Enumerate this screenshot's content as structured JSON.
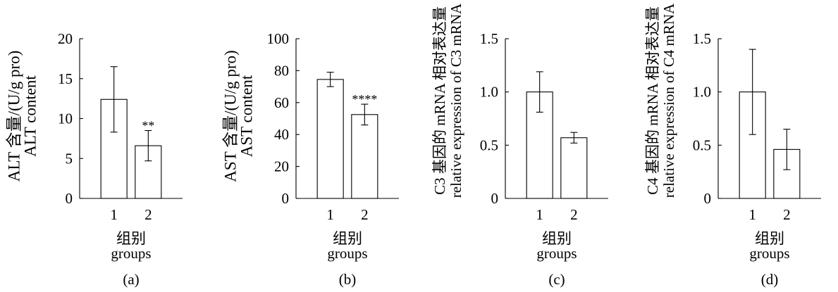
{
  "colors": {
    "background": "#ffffff",
    "bar_fill": "#ffffff",
    "bar_edge": "#000000",
    "axis": "#000000",
    "text": "#000000"
  },
  "chart_data": [
    {
      "type": "bar",
      "panel_label": "(a)",
      "ylabel": [
        "ALT 含量/(U/g pro)",
        "ALT content"
      ],
      "xlabel": [
        "组别",
        "groups"
      ],
      "categories": [
        "1",
        "2"
      ],
      "values": [
        12.4,
        6.6
      ],
      "error": [
        4.1,
        1.9
      ],
      "annotations": [
        {
          "category": "2",
          "text": "**"
        }
      ],
      "ylim": [
        0,
        20
      ],
      "yticks": [
        0,
        5,
        10,
        15,
        20
      ],
      "ytick_labels": [
        "0",
        "5",
        "10",
        "15",
        "20"
      ],
      "grid": false
    },
    {
      "type": "bar",
      "panel_label": "(b)",
      "ylabel": [
        "AST 含量/(U/g pro)",
        "AST content"
      ],
      "xlabel": [
        "组别",
        "groups"
      ],
      "categories": [
        "1",
        "2"
      ],
      "values": [
        74.5,
        52.5
      ],
      "error": [
        4.5,
        6.5
      ],
      "annotations": [
        {
          "category": "2",
          "text": "****"
        }
      ],
      "ylim": [
        0,
        100
      ],
      "yticks": [
        0,
        20,
        40,
        60,
        80,
        100
      ],
      "ytick_labels": [
        "0",
        "20",
        "40",
        "60",
        "80",
        "100"
      ],
      "grid": false
    },
    {
      "type": "bar",
      "panel_label": "(c)",
      "ylabel": [
        "C3 基因的 mRNA 相对表达量",
        "relative expression of C3 mRNA"
      ],
      "xlabel": [
        "组别",
        "groups"
      ],
      "categories": [
        "1",
        "2"
      ],
      "values": [
        1.0,
        0.57
      ],
      "error": [
        0.19,
        0.05
      ],
      "annotations": [],
      "ylim": [
        0,
        1.5
      ],
      "yticks": [
        0,
        0.5,
        1.0,
        1.5
      ],
      "ytick_labels": [
        "0",
        "0.5",
        "1.0",
        "1.5"
      ],
      "grid": false
    },
    {
      "type": "bar",
      "panel_label": "(d)",
      "ylabel": [
        "C4 基因的 mRNA 相对表达量",
        "relative expression of C4 mRNA"
      ],
      "xlabel": [
        "组别",
        "groups"
      ],
      "categories": [
        "1",
        "2"
      ],
      "values": [
        1.0,
        0.46
      ],
      "error": [
        0.4,
        0.19
      ],
      "annotations": [],
      "ylim": [
        0,
        1.5
      ],
      "yticks": [
        0,
        0.5,
        1.0,
        1.5
      ],
      "ytick_labels": [
        "0",
        "0.5",
        "1.0",
        "1.5"
      ],
      "grid": false
    }
  ]
}
